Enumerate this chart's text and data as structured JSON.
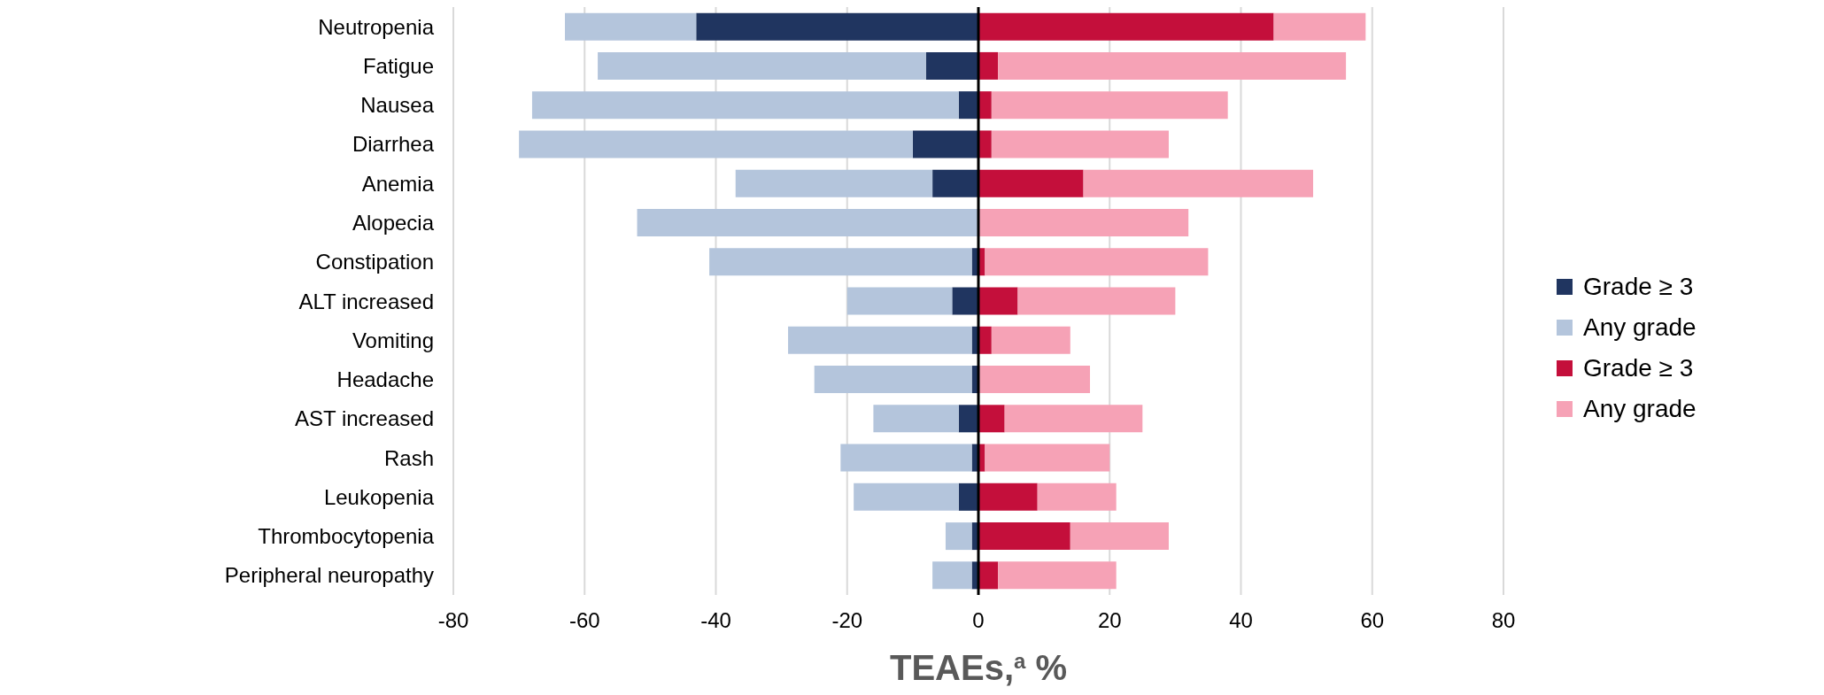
{
  "chart_data": {
    "type": "bar",
    "orientation": "horizontal",
    "stacked": true,
    "categories": [
      "Neutropenia",
      "Fatigue",
      "Nausea",
      "Diarrhea",
      "Anemia",
      "Alopecia",
      "Constipation",
      "ALT increased",
      "Vomiting",
      "Headache",
      "AST increased",
      "Rash",
      "Leukopenia",
      "Thrombocytopenia",
      "Peripheral neuropathy"
    ],
    "series": [
      {
        "name": "Grade ≥ 3",
        "color": "#203560",
        "values": [
          -43,
          -8,
          -3,
          -10,
          -7,
          0,
          -1,
          -4,
          -1,
          -1,
          -3,
          -1,
          -3,
          -1,
          -1
        ]
      },
      {
        "name": "Any grade",
        "color": "#b4c5dc",
        "values": [
          -20,
          -50,
          -65,
          -60,
          -30,
          -52,
          -40,
          -16,
          -28,
          -24,
          -13,
          -20,
          -16,
          -4,
          -6
        ]
      },
      {
        "name": "Grade ≥ 3",
        "color": "#c40f3b",
        "values": [
          45,
          3,
          2,
          2,
          16,
          0,
          1,
          6,
          2,
          0,
          4,
          1,
          9,
          14,
          3
        ]
      },
      {
        "name": "Any grade",
        "color": "#f6a2b6",
        "values": [
          14,
          53,
          36,
          27,
          35,
          32,
          34,
          24,
          12,
          17,
          21,
          19,
          12,
          15,
          18
        ]
      }
    ],
    "xlabel": "TEAEs,$^{a}$ %",
    "xlim": [
      -80,
      80
    ],
    "xticks": [
      -80,
      -60,
      -40,
      -20,
      0,
      20,
      40,
      60,
      80
    ],
    "grid": "x",
    "legend": "right",
    "ref_lines": [
      {
        "axis": "x",
        "value": 0,
        "color": "#000000"
      }
    ]
  }
}
